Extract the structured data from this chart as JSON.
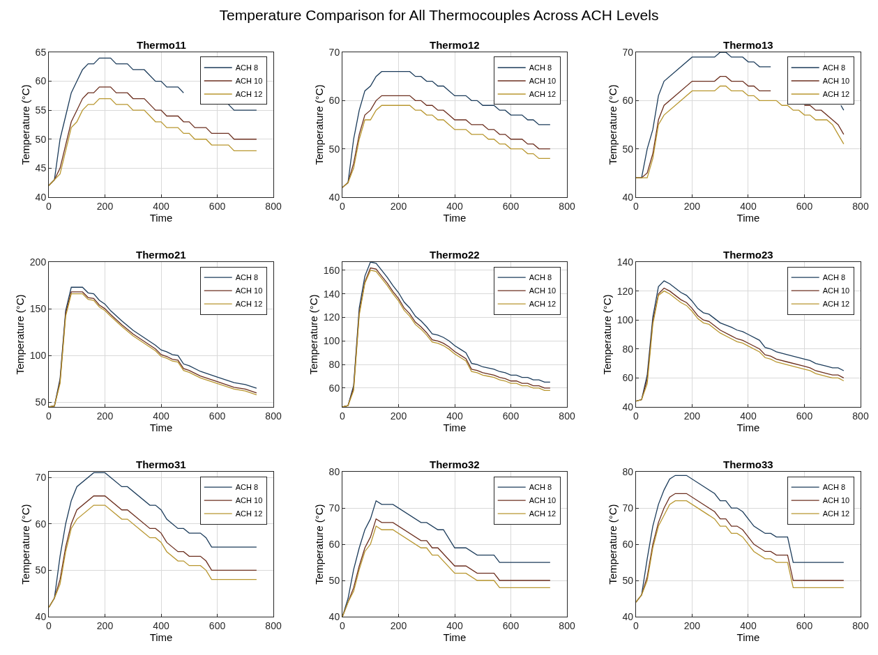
{
  "chart_data": [
    {
      "type": "other",
      "title": "Temperature Comparison for All Thermocouples Across ACH Levels"
    },
    {
      "type": "line",
      "title": "Thermo11",
      "xlabel": "Time",
      "ylabel": "Temperature (°C)",
      "xlim": [
        0,
        800
      ],
      "xticks": [
        0,
        200,
        400,
        600,
        800
      ],
      "ylim": [
        40,
        65
      ],
      "yticks": [
        40,
        45,
        50,
        55,
        60,
        65
      ],
      "grid": true,
      "legend": "top right",
      "series": [
        {
          "name": "ACH 8",
          "color": "#1b3b5a",
          "x": [
            0,
            20,
            40,
            60,
            80,
            100,
            120,
            140,
            160,
            180,
            220,
            240,
            280,
            300,
            340,
            380,
            400,
            420,
            460,
            480,
            560,
            640,
            660,
            740
          ],
          "values": [
            42,
            43,
            50,
            54,
            58,
            60,
            62,
            63,
            63,
            64,
            64,
            63,
            63,
            62,
            62,
            60,
            60,
            59,
            59,
            58,
            null,
            56,
            55,
            55
          ]
        },
        {
          "name": "ACH 10",
          "color": "#6b2e1e",
          "x": [
            0,
            20,
            40,
            60,
            80,
            100,
            120,
            140,
            160,
            180,
            220,
            240,
            280,
            300,
            340,
            380,
            400,
            420,
            460,
            480,
            500,
            520,
            560,
            580,
            640,
            660,
            740
          ],
          "values": [
            42,
            43,
            45,
            49,
            53,
            55,
            57,
            58,
            58,
            59,
            59,
            58,
            58,
            57,
            57,
            55,
            55,
            54,
            54,
            53,
            53,
            52,
            52,
            51,
            51,
            50,
            50
          ]
        },
        {
          "name": "ACH 12",
          "color": "#b8962e",
          "x": [
            0,
            20,
            40,
            60,
            80,
            100,
            120,
            140,
            160,
            180,
            220,
            240,
            280,
            300,
            340,
            380,
            400,
            420,
            460,
            480,
            500,
            520,
            560,
            580,
            640,
            660,
            740
          ],
          "values": [
            42,
            43,
            44,
            48,
            52,
            53,
            55,
            56,
            56,
            57,
            57,
            56,
            56,
            55,
            55,
            53,
            53,
            52,
            52,
            51,
            51,
            50,
            50,
            49,
            49,
            48,
            48
          ]
        }
      ]
    },
    {
      "type": "line",
      "title": "Thermo12",
      "xlabel": "Time",
      "ylabel": "Temperature (°C)",
      "xlim": [
        0,
        800
      ],
      "xticks": [
        0,
        200,
        400,
        600,
        800
      ],
      "ylim": [
        40,
        70
      ],
      "yticks": [
        40,
        50,
        60,
        70
      ],
      "grid": true,
      "legend": "top right",
      "series": [
        {
          "name": "ACH 8",
          "color": "#1b3b5a",
          "x": [
            0,
            20,
            40,
            60,
            80,
            100,
            120,
            140,
            240,
            260,
            280,
            300,
            320,
            340,
            360,
            380,
            400,
            440,
            460,
            480,
            500,
            540,
            560,
            580,
            600,
            640,
            660,
            680,
            700,
            740
          ],
          "values": [
            42,
            43,
            52,
            58,
            62,
            63,
            65,
            66,
            66,
            65,
            65,
            64,
            64,
            63,
            63,
            62,
            61,
            61,
            60,
            60,
            59,
            59,
            58,
            58,
            57,
            57,
            56,
            56,
            55,
            55
          ]
        },
        {
          "name": "ACH 10",
          "color": "#6b2e1e",
          "x": [
            0,
            20,
            40,
            60,
            80,
            100,
            120,
            140,
            240,
            260,
            280,
            300,
            320,
            340,
            360,
            380,
            400,
            440,
            460,
            500,
            520,
            540,
            560,
            580,
            600,
            640,
            660,
            680,
            700,
            740
          ],
          "values": [
            42,
            43,
            47,
            53,
            57,
            58,
            60,
            61,
            61,
            60,
            60,
            59,
            59,
            58,
            58,
            57,
            56,
            56,
            55,
            55,
            54,
            54,
            53,
            53,
            52,
            52,
            51,
            51,
            50,
            50
          ]
        },
        {
          "name": "ACH 12",
          "color": "#b8962e",
          "x": [
            0,
            20,
            40,
            60,
            80,
            100,
            120,
            140,
            240,
            260,
            280,
            300,
            320,
            340,
            360,
            380,
            400,
            440,
            460,
            500,
            520,
            540,
            560,
            580,
            600,
            640,
            660,
            680,
            700,
            740
          ],
          "values": [
            42,
            43,
            46,
            52,
            56,
            56,
            58,
            59,
            59,
            58,
            58,
            57,
            57,
            56,
            56,
            55,
            54,
            54,
            53,
            53,
            52,
            52,
            51,
            51,
            50,
            50,
            49,
            49,
            48,
            48
          ]
        }
      ]
    },
    {
      "type": "line",
      "title": "Thermo13",
      "xlabel": "Time",
      "ylabel": "Temperature (°C)",
      "xlim": [
        0,
        800
      ],
      "xticks": [
        0,
        200,
        400,
        600,
        800
      ],
      "ylim": [
        40,
        70
      ],
      "yticks": [
        40,
        50,
        60,
        70
      ],
      "grid": true,
      "legend": "top right",
      "series": [
        {
          "name": "ACH 8",
          "color": "#1b3b5a",
          "x": [
            0,
            20,
            40,
            60,
            80,
            100,
            200,
            280,
            300,
            320,
            340,
            380,
            400,
            420,
            440,
            480,
            600,
            730,
            740
          ],
          "values": [
            44,
            44,
            50,
            54,
            61,
            64,
            69,
            69,
            70,
            70,
            69,
            69,
            68,
            68,
            67,
            67,
            null,
            59,
            58
          ]
        },
        {
          "name": "ACH 10",
          "color": "#6b2e1e",
          "x": [
            0,
            20,
            40,
            60,
            80,
            100,
            200,
            280,
            300,
            320,
            340,
            380,
            400,
            420,
            440,
            480,
            540,
            600,
            620,
            640,
            660,
            700,
            720,
            740
          ],
          "values": [
            44,
            44,
            45,
            49,
            56,
            59,
            64,
            64,
            65,
            65,
            64,
            64,
            63,
            63,
            62,
            62,
            null,
            59,
            59,
            58,
            58,
            56,
            55,
            53
          ]
        },
        {
          "name": "ACH 12",
          "color": "#b8962e",
          "x": [
            0,
            20,
            40,
            60,
            80,
            100,
            200,
            280,
            300,
            320,
            340,
            380,
            400,
            420,
            440,
            500,
            520,
            540,
            560,
            580,
            600,
            620,
            640,
            680,
            700,
            720,
            740
          ],
          "values": [
            44,
            44,
            44,
            48,
            55,
            57,
            62,
            62,
            63,
            63,
            62,
            62,
            61,
            61,
            60,
            60,
            59,
            59,
            58,
            58,
            57,
            57,
            56,
            56,
            55,
            53,
            51
          ]
        }
      ]
    },
    {
      "type": "line",
      "title": "Thermo21",
      "xlabel": "Time",
      "ylabel": "Temperature (°C)",
      "xlim": [
        0,
        800
      ],
      "xticks": [
        0,
        200,
        400,
        600,
        800
      ],
      "ylim": [
        45,
        200
      ],
      "yticks": [
        50,
        100,
        150,
        200
      ],
      "grid": true,
      "legend": "top right",
      "series": [
        {
          "name": "ACH 8",
          "color": "#1b3b5a",
          "x": [
            0,
            20,
            40,
            60,
            80,
            120,
            140,
            160,
            180,
            200,
            220,
            260,
            300,
            340,
            380,
            400,
            420,
            440,
            460,
            480,
            500,
            540,
            600,
            660,
            700,
            740
          ],
          "values": [
            45,
            46,
            75,
            148,
            173,
            173,
            167,
            166,
            159,
            155,
            148,
            137,
            127,
            119,
            111,
            106,
            104,
            101,
            100,
            91,
            89,
            83,
            77,
            71,
            69,
            65
          ]
        },
        {
          "name": "ACH 10",
          "color": "#6b2e1e",
          "x": [
            0,
            20,
            40,
            60,
            80,
            120,
            140,
            160,
            180,
            200,
            220,
            260,
            300,
            340,
            380,
            400,
            420,
            440,
            460,
            480,
            500,
            540,
            600,
            660,
            700,
            740
          ],
          "values": [
            45,
            46,
            72,
            145,
            168,
            168,
            162,
            161,
            154,
            150,
            144,
            133,
            123,
            115,
            107,
            101,
            99,
            96,
            95,
            86,
            84,
            78,
            72,
            66,
            64,
            60
          ]
        },
        {
          "name": "ACH 12",
          "color": "#b8962e",
          "x": [
            0,
            20,
            40,
            60,
            80,
            120,
            140,
            160,
            180,
            200,
            220,
            260,
            300,
            340,
            380,
            400,
            420,
            440,
            460,
            480,
            500,
            540,
            600,
            660,
            700,
            740
          ],
          "values": [
            45,
            46,
            70,
            142,
            166,
            166,
            160,
            159,
            152,
            148,
            142,
            131,
            121,
            113,
            105,
            99,
            97,
            94,
            93,
            84,
            82,
            76,
            70,
            64,
            62,
            58
          ]
        }
      ]
    },
    {
      "type": "line",
      "title": "Thermo22",
      "xlabel": "Time",
      "ylabel": "Temperature (°C)",
      "xlim": [
        0,
        800
      ],
      "xticks": [
        0,
        200,
        400,
        600,
        800
      ],
      "ylim": [
        44,
        167
      ],
      "yticks": [
        60,
        80,
        100,
        120,
        140,
        160
      ],
      "grid": true,
      "legend": "top right",
      "series": [
        {
          "name": "ACH 8",
          "color": "#1b3b5a",
          "x": [
            0,
            20,
            40,
            60,
            80,
            100,
            120,
            140,
            160,
            180,
            200,
            220,
            240,
            260,
            280,
            300,
            320,
            340,
            360,
            380,
            400,
            420,
            440,
            460,
            480,
            500,
            520,
            540,
            560,
            580,
            600,
            620,
            640,
            660,
            680,
            700,
            720,
            740
          ],
          "values": [
            44,
            45,
            62,
            128,
            155,
            167,
            166,
            160,
            154,
            147,
            141,
            133,
            128,
            121,
            117,
            112,
            106,
            105,
            103,
            100,
            96,
            93,
            90,
            81,
            80,
            78,
            77,
            76,
            74,
            73,
            71,
            71,
            69,
            69,
            67,
            67,
            65,
            65
          ]
        },
        {
          "name": "ACH 10",
          "color": "#6b2e1e",
          "x": [
            0,
            20,
            40,
            60,
            80,
            100,
            120,
            140,
            160,
            180,
            200,
            220,
            240,
            260,
            280,
            300,
            320,
            340,
            360,
            380,
            400,
            420,
            440,
            460,
            480,
            500,
            520,
            540,
            560,
            580,
            600,
            620,
            640,
            660,
            680,
            700,
            720,
            740
          ],
          "values": [
            44,
            45,
            60,
            124,
            150,
            162,
            161,
            155,
            149,
            142,
            136,
            128,
            123,
            116,
            112,
            107,
            101,
            100,
            98,
            95,
            91,
            88,
            85,
            76,
            75,
            73,
            72,
            71,
            69,
            68,
            66,
            66,
            64,
            64,
            62,
            62,
            60,
            60
          ]
        },
        {
          "name": "ACH 12",
          "color": "#b8962e",
          "x": [
            0,
            20,
            40,
            60,
            80,
            100,
            120,
            140,
            160,
            180,
            200,
            220,
            240,
            260,
            280,
            300,
            320,
            340,
            360,
            380,
            400,
            420,
            440,
            460,
            480,
            500,
            520,
            540,
            560,
            580,
            600,
            620,
            640,
            660,
            680,
            700,
            720,
            740
          ],
          "values": [
            44,
            45,
            58,
            122,
            149,
            160,
            159,
            153,
            147,
            140,
            134,
            126,
            121,
            114,
            110,
            105,
            99,
            98,
            96,
            93,
            89,
            86,
            83,
            74,
            73,
            71,
            70,
            69,
            67,
            66,
            64,
            64,
            62,
            62,
            60,
            60,
            58,
            58
          ]
        }
      ]
    },
    {
      "type": "line",
      "title": "Thermo23",
      "xlabel": "Time",
      "ylabel": "Temperature (°C)",
      "xlim": [
        0,
        800
      ],
      "xticks": [
        0,
        200,
        400,
        600,
        800
      ],
      "ylim": [
        40,
        140
      ],
      "yticks": [
        40,
        60,
        80,
        100,
        120,
        140
      ],
      "grid": true,
      "legend": "top right",
      "series": [
        {
          "name": "ACH 8",
          "color": "#1b3b5a",
          "x": [
            0,
            20,
            40,
            60,
            80,
            100,
            120,
            140,
            160,
            180,
            200,
            220,
            240,
            260,
            280,
            300,
            340,
            360,
            380,
            400,
            440,
            460,
            480,
            500,
            540,
            600,
            620,
            640,
            680,
            700,
            720,
            740
          ],
          "values": [
            44,
            45,
            62,
            102,
            123,
            127,
            125,
            122,
            119,
            117,
            113,
            108,
            105,
            104,
            101,
            98,
            95,
            93,
            92,
            90,
            86,
            81,
            80,
            78,
            76,
            73,
            72,
            70,
            68,
            67,
            67,
            65
          ]
        },
        {
          "name": "ACH 10",
          "color": "#6b2e1e",
          "x": [
            0,
            20,
            40,
            60,
            80,
            100,
            120,
            140,
            160,
            180,
            200,
            220,
            240,
            260,
            280,
            300,
            340,
            360,
            380,
            400,
            440,
            460,
            480,
            500,
            540,
            600,
            620,
            640,
            680,
            700,
            720,
            740
          ],
          "values": [
            44,
            45,
            59,
            99,
            118,
            122,
            120,
            117,
            114,
            112,
            108,
            103,
            100,
            99,
            96,
            93,
            89,
            87,
            86,
            84,
            80,
            76,
            75,
            73,
            71,
            68,
            67,
            65,
            63,
            62,
            62,
            60
          ]
        },
        {
          "name": "ACH 12",
          "color": "#b8962e",
          "x": [
            0,
            20,
            40,
            60,
            80,
            100,
            120,
            140,
            160,
            180,
            200,
            220,
            240,
            260,
            280,
            300,
            340,
            360,
            380,
            400,
            440,
            460,
            480,
            500,
            540,
            600,
            620,
            640,
            680,
            700,
            720,
            740
          ],
          "values": [
            44,
            45,
            56,
            97,
            117,
            120,
            118,
            115,
            112,
            110,
            106,
            101,
            98,
            97,
            94,
            91,
            87,
            85,
            84,
            82,
            78,
            74,
            73,
            71,
            69,
            66,
            65,
            63,
            61,
            60,
            60,
            58
          ]
        }
      ]
    },
    {
      "type": "line",
      "title": "Thermo31",
      "xlabel": "Time",
      "ylabel": "Temperature (°C)",
      "xlim": [
        0,
        800
      ],
      "xticks": [
        0,
        200,
        400,
        600,
        800
      ],
      "ylim": [
        40,
        71.2
      ],
      "yticks": [
        40,
        50,
        60,
        70
      ],
      "grid": true,
      "legend": "top right",
      "series": [
        {
          "name": "ACH 8",
          "color": "#1b3b5a",
          "x": [
            0,
            20,
            40,
            60,
            80,
            100,
            160,
            200,
            260,
            280,
            360,
            380,
            400,
            420,
            460,
            480,
            500,
            540,
            560,
            580,
            740
          ],
          "values": [
            42,
            44,
            53,
            60,
            65,
            68,
            71,
            71,
            68,
            68,
            64,
            64,
            63,
            61,
            59,
            59,
            58,
            58,
            57,
            55,
            55
          ]
        },
        {
          "name": "ACH 10",
          "color": "#6b2e1e",
          "x": [
            0,
            20,
            40,
            60,
            80,
            100,
            160,
            200,
            260,
            280,
            360,
            380,
            400,
            420,
            460,
            480,
            500,
            540,
            560,
            580,
            740
          ],
          "values": [
            42,
            44,
            48,
            55,
            60,
            63,
            66,
            66,
            63,
            63,
            59,
            59,
            58,
            56,
            54,
            54,
            53,
            53,
            52,
            50,
            50
          ]
        },
        {
          "name": "ACH 12",
          "color": "#b8962e",
          "x": [
            0,
            20,
            40,
            60,
            80,
            100,
            160,
            200,
            260,
            280,
            360,
            380,
            400,
            420,
            460,
            480,
            500,
            540,
            560,
            580,
            740
          ],
          "values": [
            42,
            44,
            47,
            54,
            59,
            61,
            64,
            64,
            61,
            61,
            57,
            57,
            56,
            54,
            52,
            52,
            51,
            51,
            50,
            48,
            48
          ]
        }
      ]
    },
    {
      "type": "line",
      "title": "Thermo32",
      "xlabel": "Time",
      "ylabel": "Temperature (°C)",
      "xlim": [
        0,
        800
      ],
      "xticks": [
        0,
        200,
        400,
        600,
        800
      ],
      "ylim": [
        40,
        80
      ],
      "yticks": [
        40,
        50,
        60,
        70,
        80
      ],
      "grid": true,
      "legend": "top right",
      "series": [
        {
          "name": "ACH 8",
          "color": "#1b3b5a",
          "x": [
            0,
            20,
            40,
            60,
            80,
            100,
            120,
            140,
            180,
            280,
            300,
            340,
            360,
            400,
            440,
            480,
            540,
            560,
            740
          ],
          "values": [
            40,
            45,
            53,
            59,
            64,
            67,
            72,
            71,
            71,
            66,
            66,
            64,
            64,
            59,
            59,
            57,
            57,
            55,
            55
          ]
        },
        {
          "name": "ACH 10",
          "color": "#6b2e1e",
          "x": [
            0,
            20,
            40,
            60,
            80,
            100,
            120,
            140,
            180,
            280,
            300,
            320,
            340,
            400,
            440,
            480,
            540,
            560,
            740
          ],
          "values": [
            40,
            44,
            48,
            54,
            59,
            62,
            67,
            66,
            66,
            61,
            61,
            59,
            59,
            54,
            54,
            52,
            52,
            50,
            50
          ]
        },
        {
          "name": "ACH 12",
          "color": "#b8962e",
          "x": [
            0,
            20,
            40,
            60,
            80,
            100,
            120,
            140,
            180,
            280,
            300,
            320,
            340,
            400,
            440,
            480,
            540,
            560,
            740
          ],
          "values": [
            40,
            44,
            47,
            53,
            58,
            60,
            65,
            64,
            64,
            59,
            59,
            57,
            57,
            52,
            52,
            50,
            50,
            48,
            48
          ]
        }
      ]
    },
    {
      "type": "line",
      "title": "Thermo33",
      "xlabel": "Time",
      "ylabel": "Temperature (°C)",
      "xlim": [
        0,
        800
      ],
      "xticks": [
        0,
        200,
        400,
        600,
        800
      ],
      "ylim": [
        40,
        80
      ],
      "yticks": [
        40,
        50,
        60,
        70,
        80
      ],
      "grid": true,
      "legend": "top right",
      "series": [
        {
          "name": "ACH 8",
          "color": "#1b3b5a",
          "x": [
            0,
            20,
            40,
            60,
            80,
            100,
            120,
            140,
            180,
            280,
            300,
            320,
            340,
            360,
            380,
            420,
            460,
            480,
            500,
            540,
            560,
            740
          ],
          "values": [
            44,
            46,
            56,
            65,
            71,
            75,
            78,
            79,
            79,
            74,
            72,
            72,
            70,
            70,
            69,
            65,
            63,
            63,
            62,
            62,
            55,
            55
          ]
        },
        {
          "name": "ACH 10",
          "color": "#6b2e1e",
          "x": [
            0,
            20,
            40,
            60,
            80,
            100,
            120,
            140,
            180,
            280,
            300,
            320,
            340,
            360,
            380,
            420,
            460,
            480,
            500,
            540,
            560,
            740
          ],
          "values": [
            44,
            46,
            51,
            60,
            66,
            70,
            73,
            74,
            74,
            69,
            67,
            67,
            65,
            65,
            64,
            60,
            58,
            58,
            57,
            57,
            50,
            50
          ]
        },
        {
          "name": "ACH 12",
          "color": "#b8962e",
          "x": [
            0,
            20,
            40,
            60,
            80,
            100,
            120,
            140,
            180,
            280,
            300,
            320,
            340,
            360,
            380,
            420,
            460,
            480,
            500,
            540,
            560,
            740
          ],
          "values": [
            44,
            46,
            50,
            59,
            65,
            68,
            71,
            72,
            72,
            67,
            65,
            65,
            63,
            63,
            62,
            58,
            56,
            56,
            55,
            55,
            48,
            48
          ]
        }
      ]
    }
  ]
}
